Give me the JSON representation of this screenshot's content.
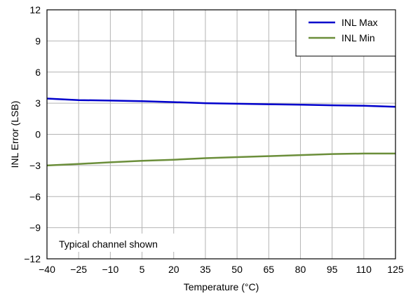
{
  "chart_data": {
    "type": "line",
    "xlabel": "Temperature (°C)",
    "ylabel": "INL Error (LSB)",
    "xlim": [
      -40,
      125
    ],
    "ylim": [
      -12,
      12
    ],
    "xticks": [
      -40,
      -25,
      -10,
      5,
      20,
      35,
      50,
      65,
      80,
      95,
      110,
      125
    ],
    "yticks": [
      -12,
      -9,
      -6,
      -3,
      0,
      3,
      6,
      9,
      12
    ],
    "xtick_labels": [
      "−40",
      "−25",
      "−10",
      "5",
      "20",
      "35",
      "50",
      "65",
      "80",
      "95",
      "110",
      "125"
    ],
    "ytick_labels": [
      "−12",
      "−9",
      "−6",
      "−3",
      "0",
      "3",
      "6",
      "9",
      "12"
    ],
    "grid": true,
    "legend_position": "top-right",
    "annotation": "Typical channel shown",
    "series": [
      {
        "name": "INL Max",
        "color": "#0000cc",
        "x": [
          -40,
          -25,
          -10,
          5,
          20,
          35,
          50,
          65,
          80,
          95,
          110,
          125
        ],
        "y": [
          3.45,
          3.3,
          3.25,
          3.2,
          3.1,
          3.0,
          2.95,
          2.9,
          2.85,
          2.8,
          2.75,
          2.65
        ]
      },
      {
        "name": "INL Min",
        "color": "#6b8e3a",
        "x": [
          -40,
          -25,
          -10,
          5,
          20,
          35,
          50,
          65,
          80,
          95,
          110,
          125
        ],
        "y": [
          -3.0,
          -2.85,
          -2.7,
          -2.55,
          -2.45,
          -2.3,
          -2.2,
          -2.1,
          -2.0,
          -1.9,
          -1.85,
          -1.85
        ]
      }
    ]
  }
}
